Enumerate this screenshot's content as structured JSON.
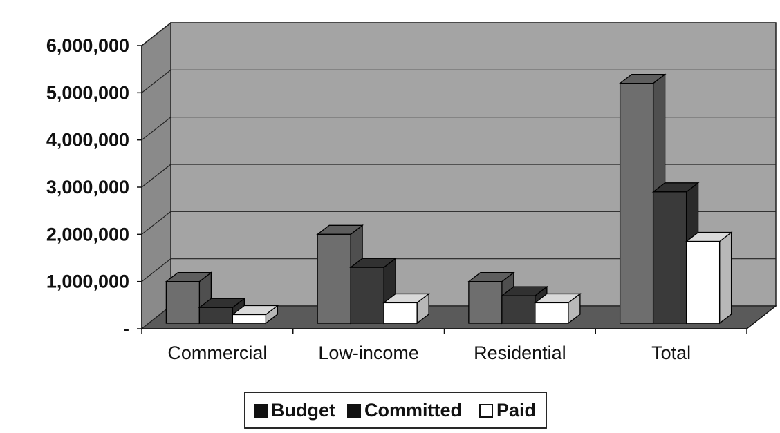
{
  "chart_data": {
    "type": "bar",
    "title": "",
    "xlabel": "",
    "ylabel": "",
    "categories": [
      "Commercial",
      "Low-income",
      "Residential",
      "Total"
    ],
    "series": [
      {
        "name": "Budget",
        "values": [
          1000000,
          2000000,
          1000000,
          5200000
        ],
        "color": "#6e6e6e"
      },
      {
        "name": "Committed",
        "values": [
          450000,
          1300000,
          700000,
          2900000
        ],
        "color": "#3a3a3a"
      },
      {
        "name": "Paid",
        "values": [
          300000,
          550000,
          550000,
          1850000
        ],
        "color": "#ffffff"
      }
    ],
    "ylim": [
      0,
      6000000
    ],
    "yticks": [
      0,
      1000000,
      2000000,
      3000000,
      4000000,
      5000000,
      6000000
    ],
    "ytick_labels": [
      "-",
      "1,000,000",
      "2,000,000",
      "3,000,000",
      "4,000,000",
      "5,000,000",
      "6,000,000"
    ],
    "grid": true,
    "legend_position": "bottom",
    "colors": {
      "wall": "#a4a4a4",
      "side_wall": "#8a8a8a",
      "floor": "#5a5a5a",
      "grid": "#222222"
    }
  }
}
